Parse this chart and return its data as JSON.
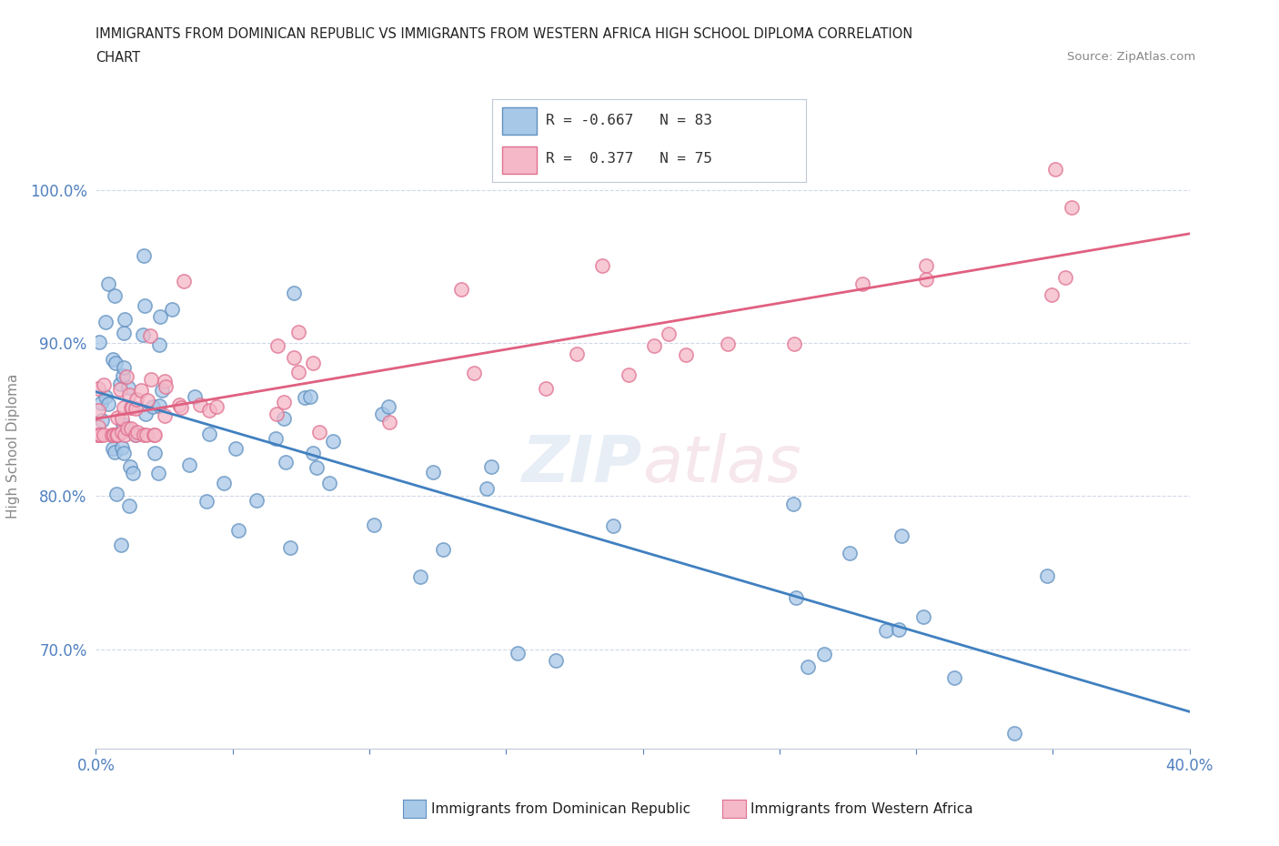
{
  "title_line1": "IMMIGRANTS FROM DOMINICAN REPUBLIC VS IMMIGRANTS FROM WESTERN AFRICA HIGH SCHOOL DIPLOMA CORRELATION",
  "title_line2": "CHART",
  "source_text": "Source: ZipAtlas.com",
  "ylabel": "High School Diploma",
  "xlim": [
    0.0,
    0.4
  ],
  "ylim": [
    0.635,
    1.03
  ],
  "yticks": [
    0.7,
    0.8,
    0.9,
    1.0
  ],
  "xtick_positions": [
    0.0,
    0.05,
    0.1,
    0.15,
    0.2,
    0.25,
    0.3,
    0.35,
    0.4
  ],
  "xtick_labels": [
    "0.0%",
    "",
    "",
    "",
    "",
    "",
    "",
    "",
    "40.0%"
  ],
  "ytick_labels": [
    "70.0%",
    "80.0%",
    "90.0%",
    "100.0%"
  ],
  "blue_color": "#a8c8e8",
  "pink_color": "#f4b8c8",
  "blue_edge_color": "#6090c0",
  "pink_edge_color": "#e07090",
  "blue_line_color": "#4080c0",
  "pink_line_color": "#e06080",
  "legend_r_blue": "R = -0.667",
  "legend_n_blue": "N = 83",
  "legend_r_pink": "R =  0.377",
  "legend_n_pink": "N = 75",
  "legend_label_blue": "Immigrants from Dominican Republic",
  "legend_label_pink": "Immigrants from Western Africa",
  "watermark": "ZIPatlas",
  "tick_color": "#5080c0",
  "grid_color": "#d0d8e8"
}
